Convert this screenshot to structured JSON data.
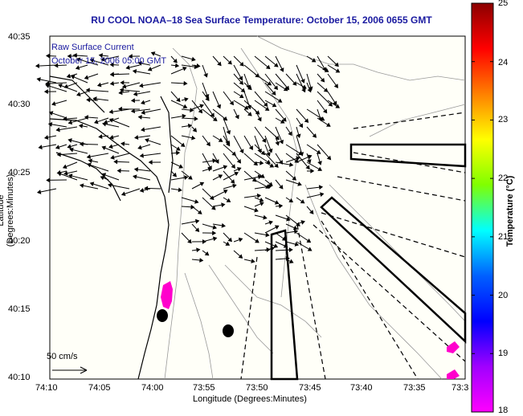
{
  "title": "RU COOL  NOAA–18  Sea Surface Temperature:  October 15, 2006 0655 GMT",
  "legend": {
    "line1": "Raw Surface Current",
    "line2": "October 15, 2006 05:00 GMT"
  },
  "scale_label": "50 cm/s",
  "axes": {
    "xlabel": "Longitude (Degrees:Minutes)",
    "ylabel": "Latitude (Degrees:Minutes)",
    "xticks": [
      "74:10",
      "74:05",
      "74:00",
      "73:55",
      "73:50",
      "73:45",
      "73:40",
      "73:35",
      "73:3"
    ],
    "yticks": [
      "40:35",
      "40:30",
      "40:25",
      "40:20",
      "40:15",
      "40:10"
    ]
  },
  "colorbar": {
    "label": "Temperature (°C)",
    "ticks": [
      "25",
      "24",
      "23",
      "22",
      "21",
      "20",
      "19",
      "18"
    ],
    "colors": [
      "#8b0000",
      "#ff0000",
      "#ff8000",
      "#ffff00",
      "#80ff00",
      "#00ffff",
      "#0060ff",
      "#0000ff",
      "#a000ff",
      "#ff00ff"
    ]
  }
}
